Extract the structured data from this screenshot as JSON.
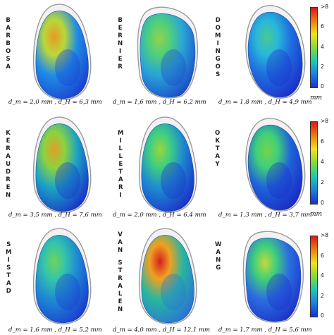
{
  "panels": [
    {
      "name": "BARBOSA",
      "metric": "d_m = 2,0 mm , d_H = 6,3 mm"
    },
    {
      "name": "BERNIER",
      "metric": "d_m = 1,6 mm , d_H = 6,2 mm"
    },
    {
      "name": "DOMINGOS",
      "metric": "d_m = 1,8 mm , d_H = 4,9 mm"
    },
    {
      "name": "KERAUDREN",
      "metric": "d_m = 3,5 mm , d_H = 7,6 mm"
    },
    {
      "name": "MILLETARI",
      "metric": "d_m = 2,0 mm , d_H = 6,4 mm"
    },
    {
      "name": "OKTAY",
      "metric": "d_m = 1,3 mm , d_H = 3,7 mm"
    },
    {
      "name": "SMISTAD",
      "metric": "d_m = 1,6 mm , d_H = 5,2 mm"
    },
    {
      "name": "VAN STRALEN",
      "metric": "d_m = 4,0 mm , d_H = 12,1 mm"
    },
    {
      "name": "WANG",
      "metric": "d_m = 1,7 mm , d_H = 5,6 mm"
    }
  ],
  "colorbar": {
    "ticks": [
      ">8",
      "6",
      "4",
      "2",
      "0"
    ],
    "unit": "mm",
    "colors": [
      "#d81818",
      "#f07a10",
      "#f2e21e",
      "#86d83a",
      "#1fc8b0",
      "#1e7fe0",
      "#1a2fd0"
    ]
  }
}
